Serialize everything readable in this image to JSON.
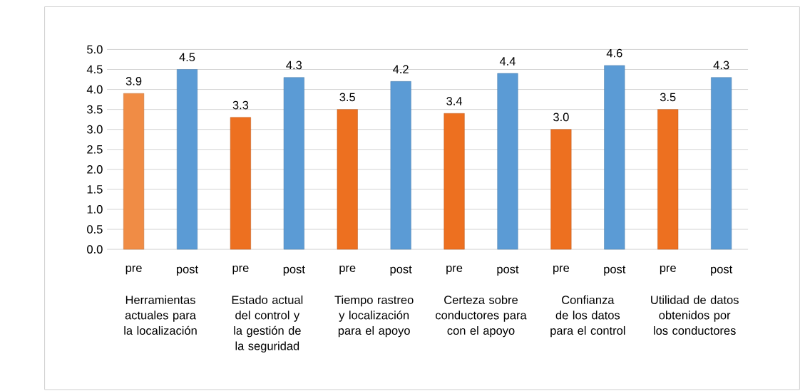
{
  "chart_data": {
    "type": "bar",
    "categories": [
      "pre",
      "post",
      "pre",
      "post",
      "pre",
      "post",
      "pre",
      "post",
      "pre",
      "post",
      "pre",
      "post"
    ],
    "values": [
      3.9,
      4.5,
      3.3,
      4.3,
      3.5,
      4.2,
      3.4,
      4.4,
      3.0,
      4.6,
      3.5,
      4.3
    ],
    "colors": [
      "#f08c45",
      "#5b9bd5",
      "#ed7020",
      "#5b9bd5",
      "#ed7020",
      "#5b9bd5",
      "#ed7020",
      "#5b9bd5",
      "#ed7020",
      "#5b9bd5",
      "#ed7020",
      "#5b9bd5"
    ],
    "value_labels": [
      "3.9",
      "4.5",
      "3.3",
      "4.3",
      "3.5",
      "4.2",
      "3.4",
      "4.4",
      "3.0",
      "4.6",
      "3.5",
      "4.3"
    ],
    "ylim": [
      0,
      5
    ],
    "yticks": [
      {
        "value": 0,
        "label": "0.0"
      },
      {
        "value": 0.5,
        "label": "0.5"
      },
      {
        "value": 1,
        "label": "1.0"
      },
      {
        "value": 1.5,
        "label": "1.5"
      },
      {
        "value": 2,
        "label": "2.0"
      },
      {
        "value": 2.5,
        "label": "2.5"
      },
      {
        "value": 3,
        "label": "3.0"
      },
      {
        "value": 3.5,
        "label": "3.5"
      },
      {
        "value": 4,
        "label": "4.0"
      },
      {
        "value": 4.5,
        "label": "4.5"
      },
      {
        "value": 5,
        "label": "5.0"
      }
    ],
    "grid": "y",
    "annotations": [
      "Herramientas actuales para la localización",
      "Estado actual del control y la gestión de la seguridad",
      "Tiempo rastreo y localización para el apoyo",
      "Certeza sobre conductores para con el apoyo",
      "Confianza de los datos para el control",
      "Utilidad de datos obtenidos por los conductores"
    ]
  }
}
